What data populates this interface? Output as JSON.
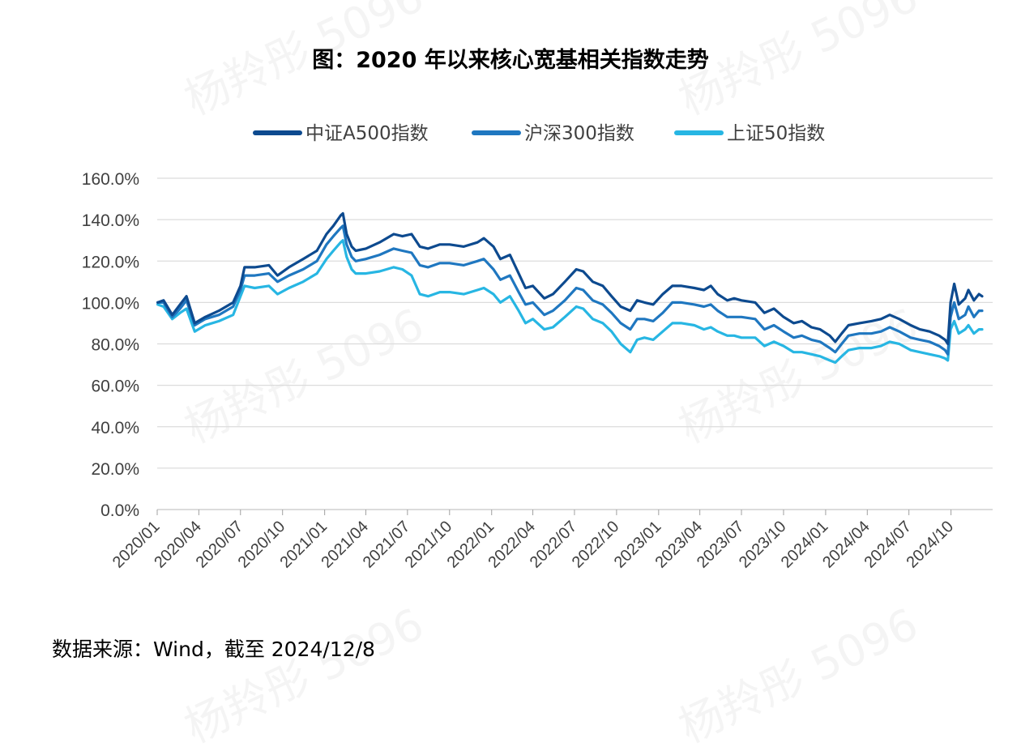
{
  "title": "图：2020 年以来核心宽基相关指数走势",
  "source": "数据来源：Wind，截至 2024/12/8",
  "watermark_text": "杨羚彤 5096",
  "chart_data": {
    "type": "line",
    "title": "图：2020 年以来核心宽基相关指数走势",
    "xlabel": "",
    "ylabel": "",
    "ylim": [
      0,
      160
    ],
    "y_ticks": [
      "0.0%",
      "20.0%",
      "40.0%",
      "60.0%",
      "80.0%",
      "100.0%",
      "120.0%",
      "140.0%",
      "160.0%"
    ],
    "x_range": [
      "2020/01",
      "2024/12"
    ],
    "x_ticks": [
      "2020/01",
      "2020/04",
      "2020/07",
      "2020/10",
      "2021/01",
      "2021/04",
      "2021/07",
      "2021/10",
      "2022/01",
      "2022/04",
      "2022/07",
      "2022/10",
      "2023/01",
      "2023/04",
      "2023/07",
      "2023/10",
      "2024/01",
      "2024/04",
      "2024/07",
      "2024/10"
    ],
    "grid": "horizontal",
    "legend": "top-center",
    "series": [
      {
        "name": "中证A500指数",
        "color": "#0d4a8f",
        "x": [
          "2020/01/02",
          "2020/01/15",
          "2020/02/03",
          "2020/02/20",
          "2020/03/05",
          "2020/03/23",
          "2020/04/15",
          "2020/05/15",
          "2020/06/15",
          "2020/07/01",
          "2020/07/10",
          "2020/08/01",
          "2020/09/01",
          "2020/09/20",
          "2020/10/15",
          "2020/11/15",
          "2020/12/15",
          "2021/01/05",
          "2021/01/20",
          "2021/02/05",
          "2021/02/10",
          "2021/02/18",
          "2021/03/01",
          "2021/03/10",
          "2021/04/01",
          "2021/05/01",
          "2021/06/01",
          "2021/06/20",
          "2021/07/10",
          "2021/07/28",
          "2021/08/15",
          "2021/09/10",
          "2021/10/01",
          "2021/11/01",
          "2021/12/01",
          "2021/12/15",
          "2022/01/05",
          "2022/01/20",
          "2022/02/10",
          "2022/03/01",
          "2022/03/16",
          "2022/04/01",
          "2022/04/26",
          "2022/05/15",
          "2022/06/10",
          "2022/07/05",
          "2022/07/20",
          "2022/08/10",
          "2022/09/01",
          "2022/09/20",
          "2022/10/10",
          "2022/10/31",
          "2022/11/15",
          "2022/12/01",
          "2022/12/20",
          "2023/01/10",
          "2023/01/31",
          "2023/02/20",
          "2023/03/20",
          "2023/04/10",
          "2023/04/25",
          "2023/05/10",
          "2023/05/31",
          "2023/06/15",
          "2023/07/01",
          "2023/07/31",
          "2023/08/20",
          "2023/09/10",
          "2023/10/01",
          "2023/10/23",
          "2023/11/10",
          "2023/12/01",
          "2023/12/20",
          "2024/01/10",
          "2024/01/22",
          "2024/02/05",
          "2024/02/20",
          "2024/03/15",
          "2024/04/10",
          "2024/05/01",
          "2024/05/20",
          "2024/06/10",
          "2024/07/05",
          "2024/07/25",
          "2024/08/15",
          "2024/09/05",
          "2024/09/18",
          "2024/09/24",
          "2024/09/30",
          "2024/10/08",
          "2024/10/18",
          "2024/11/01",
          "2024/11/08",
          "2024/11/20",
          "2024/12/01",
          "2024/12/08"
        ],
        "values": [
          100,
          101,
          94,
          99,
          103,
          90,
          93,
          96,
          100,
          108,
          117,
          117,
          118,
          113,
          117,
          121,
          125,
          133,
          137,
          142,
          143,
          133,
          127,
          125,
          126,
          129,
          133,
          132,
          133,
          127,
          126,
          128,
          128,
          127,
          129,
          131,
          127,
          121,
          123,
          114,
          107,
          108,
          102,
          104,
          110,
          116,
          115,
          110,
          108,
          103,
          98,
          96,
          101,
          100,
          99,
          104,
          108,
          108,
          107,
          106,
          108,
          104,
          101,
          102,
          101,
          100,
          95,
          97,
          93,
          90,
          91,
          88,
          87,
          84,
          81,
          85,
          89,
          90,
          91,
          92,
          94,
          92,
          89,
          87,
          86,
          84,
          82,
          80,
          100,
          109,
          99,
          102,
          106,
          101,
          104,
          103
        ]
      },
      {
        "name": "沪深300指数",
        "color": "#1f77c0",
        "x": [
          "2020/01/02",
          "2020/01/15",
          "2020/02/03",
          "2020/02/20",
          "2020/03/05",
          "2020/03/23",
          "2020/04/15",
          "2020/05/15",
          "2020/06/15",
          "2020/07/01",
          "2020/07/10",
          "2020/08/01",
          "2020/09/01",
          "2020/09/20",
          "2020/10/15",
          "2020/11/15",
          "2020/12/15",
          "2021/01/05",
          "2021/01/20",
          "2021/02/05",
          "2021/02/10",
          "2021/02/18",
          "2021/03/01",
          "2021/03/10",
          "2021/04/01",
          "2021/05/01",
          "2021/06/01",
          "2021/06/20",
          "2021/07/10",
          "2021/07/28",
          "2021/08/15",
          "2021/09/10",
          "2021/10/01",
          "2021/11/01",
          "2021/12/01",
          "2021/12/15",
          "2022/01/05",
          "2022/01/20",
          "2022/02/10",
          "2022/03/01",
          "2022/03/16",
          "2022/04/01",
          "2022/04/26",
          "2022/05/15",
          "2022/06/10",
          "2022/07/05",
          "2022/07/20",
          "2022/08/10",
          "2022/09/01",
          "2022/09/20",
          "2022/10/10",
          "2022/10/31",
          "2022/11/15",
          "2022/12/01",
          "2022/12/20",
          "2023/01/10",
          "2023/01/31",
          "2023/02/20",
          "2023/03/20",
          "2023/04/10",
          "2023/04/25",
          "2023/05/10",
          "2023/05/31",
          "2023/06/15",
          "2023/07/01",
          "2023/07/31",
          "2023/08/20",
          "2023/09/10",
          "2023/10/01",
          "2023/10/23",
          "2023/11/10",
          "2023/12/01",
          "2023/12/20",
          "2024/01/10",
          "2024/01/22",
          "2024/02/05",
          "2024/02/20",
          "2024/03/15",
          "2024/04/10",
          "2024/05/01",
          "2024/05/20",
          "2024/06/10",
          "2024/07/05",
          "2024/07/25",
          "2024/08/15",
          "2024/09/05",
          "2024/09/18",
          "2024/09/24",
          "2024/09/30",
          "2024/10/08",
          "2024/10/18",
          "2024/11/01",
          "2024/11/08",
          "2024/11/20",
          "2024/12/01",
          "2024/12/08"
        ],
        "values": [
          100,
          100,
          93,
          97,
          101,
          89,
          92,
          94,
          98,
          106,
          113,
          113,
          114,
          110,
          113,
          116,
          120,
          128,
          132,
          136,
          137,
          128,
          122,
          120,
          121,
          123,
          126,
          125,
          124,
          118,
          117,
          119,
          119,
          118,
          120,
          121,
          116,
          111,
          113,
          105,
          99,
          100,
          94,
          96,
          101,
          107,
          106,
          101,
          99,
          95,
          90,
          87,
          92,
          92,
          91,
          95,
          100,
          100,
          99,
          98,
          99,
          96,
          93,
          93,
          93,
          92,
          87,
          89,
          86,
          83,
          84,
          82,
          81,
          78,
          76,
          80,
          84,
          85,
          85,
          86,
          88,
          86,
          83,
          82,
          81,
          79,
          77,
          75,
          93,
          100,
          92,
          94,
          98,
          93,
          96,
          96
        ]
      },
      {
        "name": "上证50指数",
        "color": "#27b6e3",
        "x": [
          "2020/01/02",
          "2020/01/15",
          "2020/02/03",
          "2020/02/20",
          "2020/03/05",
          "2020/03/23",
          "2020/04/15",
          "2020/05/15",
          "2020/06/15",
          "2020/07/01",
          "2020/07/10",
          "2020/08/01",
          "2020/09/01",
          "2020/09/20",
          "2020/10/15",
          "2020/11/15",
          "2020/12/15",
          "2021/01/05",
          "2021/01/20",
          "2021/02/05",
          "2021/02/10",
          "2021/02/18",
          "2021/03/01",
          "2021/03/10",
          "2021/04/01",
          "2021/05/01",
          "2021/06/01",
          "2021/06/20",
          "2021/07/10",
          "2021/07/28",
          "2021/08/15",
          "2021/09/10",
          "2021/10/01",
          "2021/11/01",
          "2021/12/01",
          "2021/12/15",
          "2022/01/05",
          "2022/01/20",
          "2022/02/10",
          "2022/03/01",
          "2022/03/16",
          "2022/04/01",
          "2022/04/26",
          "2022/05/15",
          "2022/06/10",
          "2022/07/05",
          "2022/07/20",
          "2022/08/10",
          "2022/09/01",
          "2022/09/20",
          "2022/10/10",
          "2022/10/31",
          "2022/11/15",
          "2022/12/01",
          "2022/12/20",
          "2023/01/10",
          "2023/01/31",
          "2023/02/20",
          "2023/03/20",
          "2023/04/10",
          "2023/04/25",
          "2023/05/10",
          "2023/05/31",
          "2023/06/15",
          "2023/07/01",
          "2023/07/31",
          "2023/08/20",
          "2023/09/10",
          "2023/10/01",
          "2023/10/23",
          "2023/11/10",
          "2023/12/01",
          "2023/12/20",
          "2024/01/10",
          "2024/01/22",
          "2024/02/05",
          "2024/02/20",
          "2024/03/15",
          "2024/04/10",
          "2024/05/01",
          "2024/05/20",
          "2024/06/10",
          "2024/07/05",
          "2024/07/25",
          "2024/08/15",
          "2024/09/05",
          "2024/09/18",
          "2024/09/24",
          "2024/09/30",
          "2024/10/08",
          "2024/10/18",
          "2024/11/01",
          "2024/11/08",
          "2024/11/20",
          "2024/12/01",
          "2024/12/08"
        ],
        "values": [
          99,
          98,
          92,
          95,
          97,
          86,
          89,
          91,
          94,
          103,
          108,
          107,
          108,
          104,
          107,
          110,
          114,
          121,
          125,
          129,
          130,
          122,
          116,
          114,
          114,
          115,
          117,
          116,
          113,
          104,
          103,
          105,
          105,
          104,
          106,
          107,
          104,
          100,
          103,
          96,
          90,
          92,
          87,
          88,
          93,
          98,
          97,
          92,
          90,
          86,
          80,
          76,
          82,
          83,
          82,
          86,
          90,
          90,
          89,
          87,
          88,
          86,
          84,
          84,
          83,
          83,
          79,
          81,
          79,
          76,
          76,
          75,
          74,
          72,
          71,
          74,
          77,
          78,
          78,
          79,
          81,
          80,
          77,
          76,
          75,
          74,
          73,
          72,
          87,
          91,
          85,
          87,
          89,
          85,
          87,
          87
        ]
      }
    ]
  }
}
